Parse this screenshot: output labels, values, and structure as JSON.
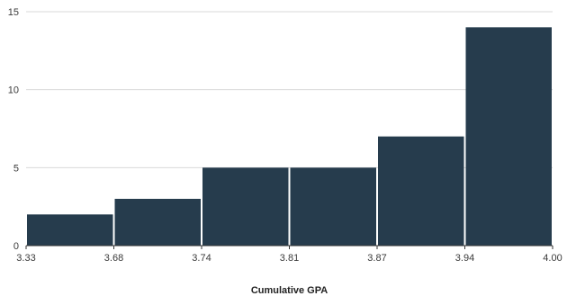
{
  "chart_data": {
    "type": "bar",
    "subtype": "histogram",
    "title": "",
    "xlabel": "Cumulative GPA",
    "ylabel": "",
    "bin_edges": [
      "3.33",
      "3.68",
      "3.74",
      "3.81",
      "3.87",
      "3.94",
      "4.00"
    ],
    "values": [
      2,
      3,
      5,
      5,
      7,
      14
    ],
    "ylim": [
      0,
      15
    ],
    "yticks": [
      "0",
      "5",
      "10",
      "15"
    ],
    "grid": true,
    "legend": "none",
    "bar_color": "#263c4d",
    "grid_color": "#d9d9d9",
    "axis_color": "#333333"
  }
}
